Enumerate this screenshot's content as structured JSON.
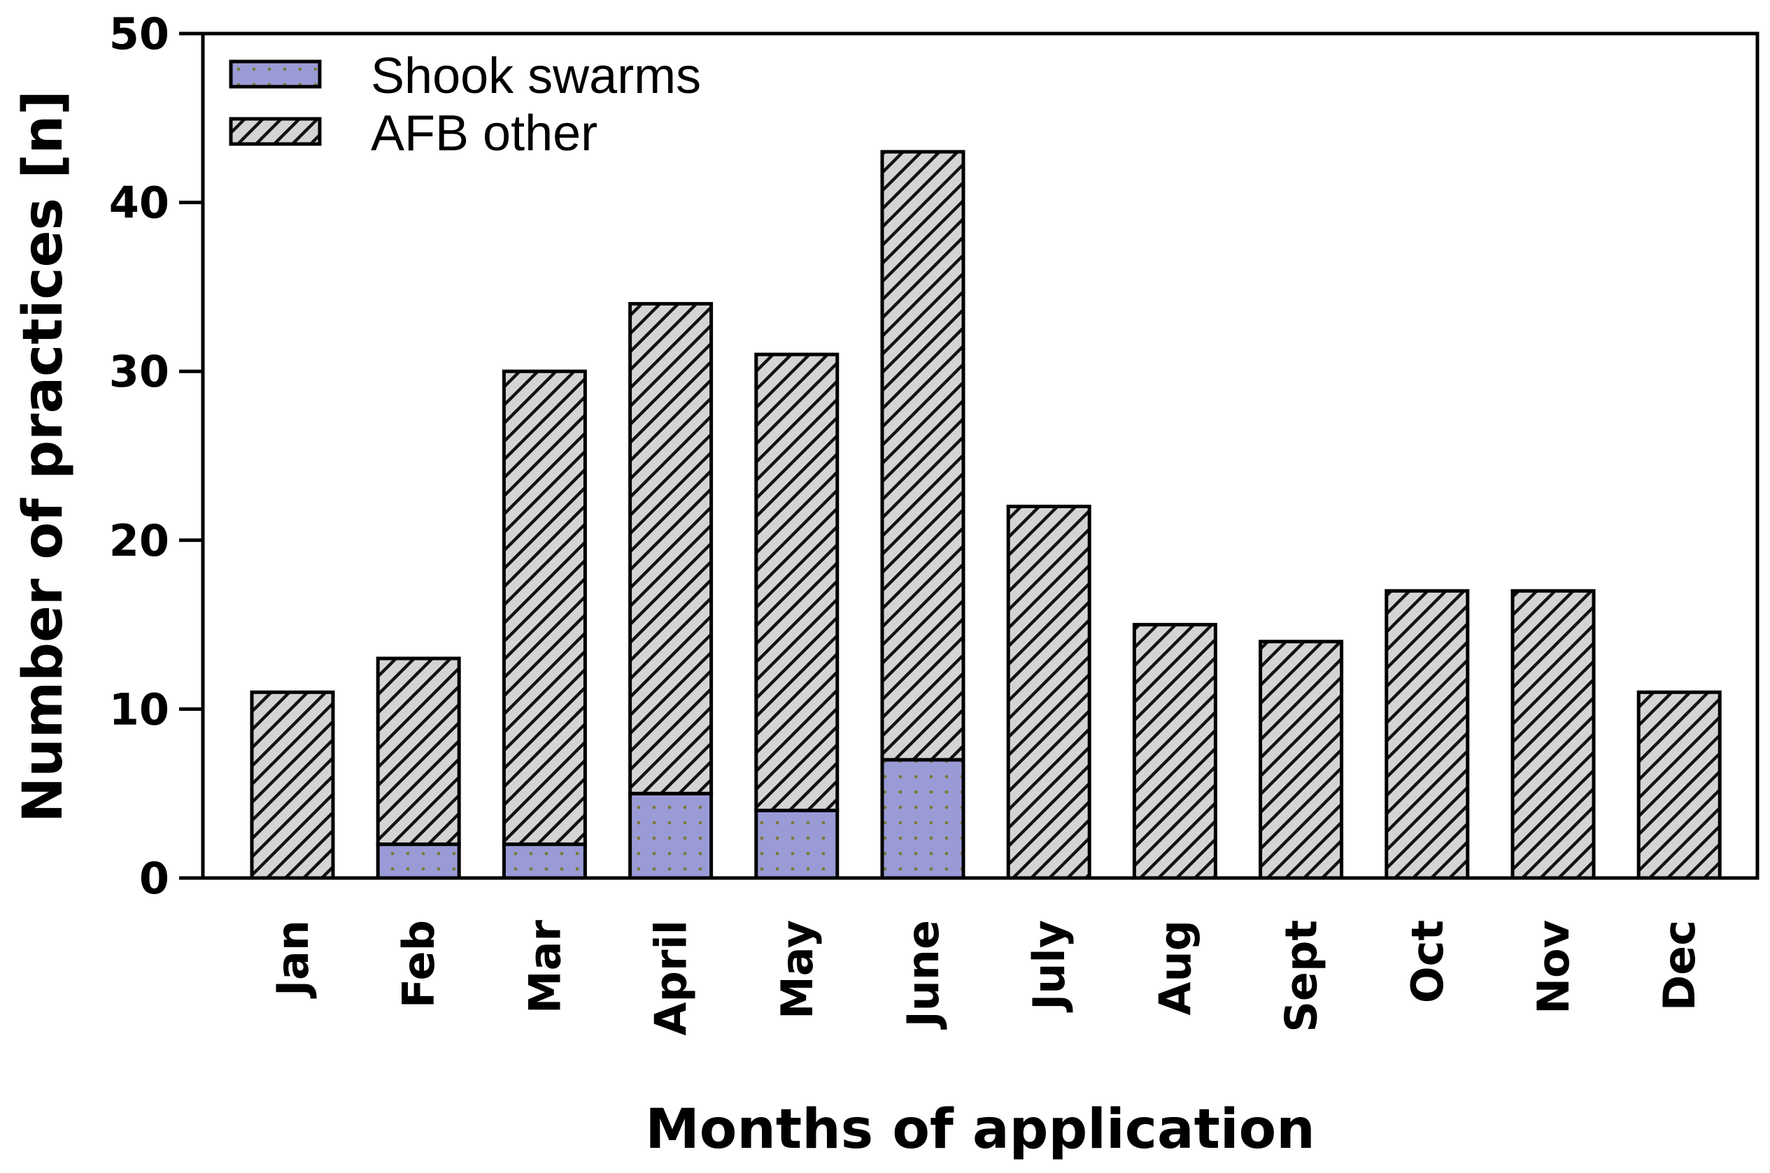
{
  "chart_data": {
    "type": "bar",
    "stacked": true,
    "categories": [
      "Jan",
      "Feb",
      "Mar",
      "April",
      "May",
      "June",
      "July",
      "Aug",
      "Sept",
      "Oct",
      "Nov",
      "Dec"
    ],
    "series": [
      {
        "name": "Shook swarms",
        "values": [
          0,
          2,
          2,
          5,
          4,
          7,
          0,
          0,
          0,
          0,
          0,
          0
        ],
        "color": "#9a9bd6",
        "pattern": "dots"
      },
      {
        "name": "AFB other",
        "values": [
          11,
          11,
          28,
          29,
          27,
          36,
          22,
          15,
          14,
          17,
          17,
          11
        ],
        "color": "#d4d4d4",
        "pattern": "diagonal-hatch"
      }
    ],
    "totals": [
      11,
      13,
      30,
      34,
      31,
      43,
      22,
      15,
      14,
      17,
      17,
      11
    ],
    "xlabel": "Months of application",
    "ylabel": "Number of practices [n]",
    "ylim": [
      0,
      50
    ],
    "yticks": [
      "0",
      "10",
      "20",
      "30",
      "40",
      "50"
    ],
    "legend_position": "top-left",
    "grid": false
  }
}
